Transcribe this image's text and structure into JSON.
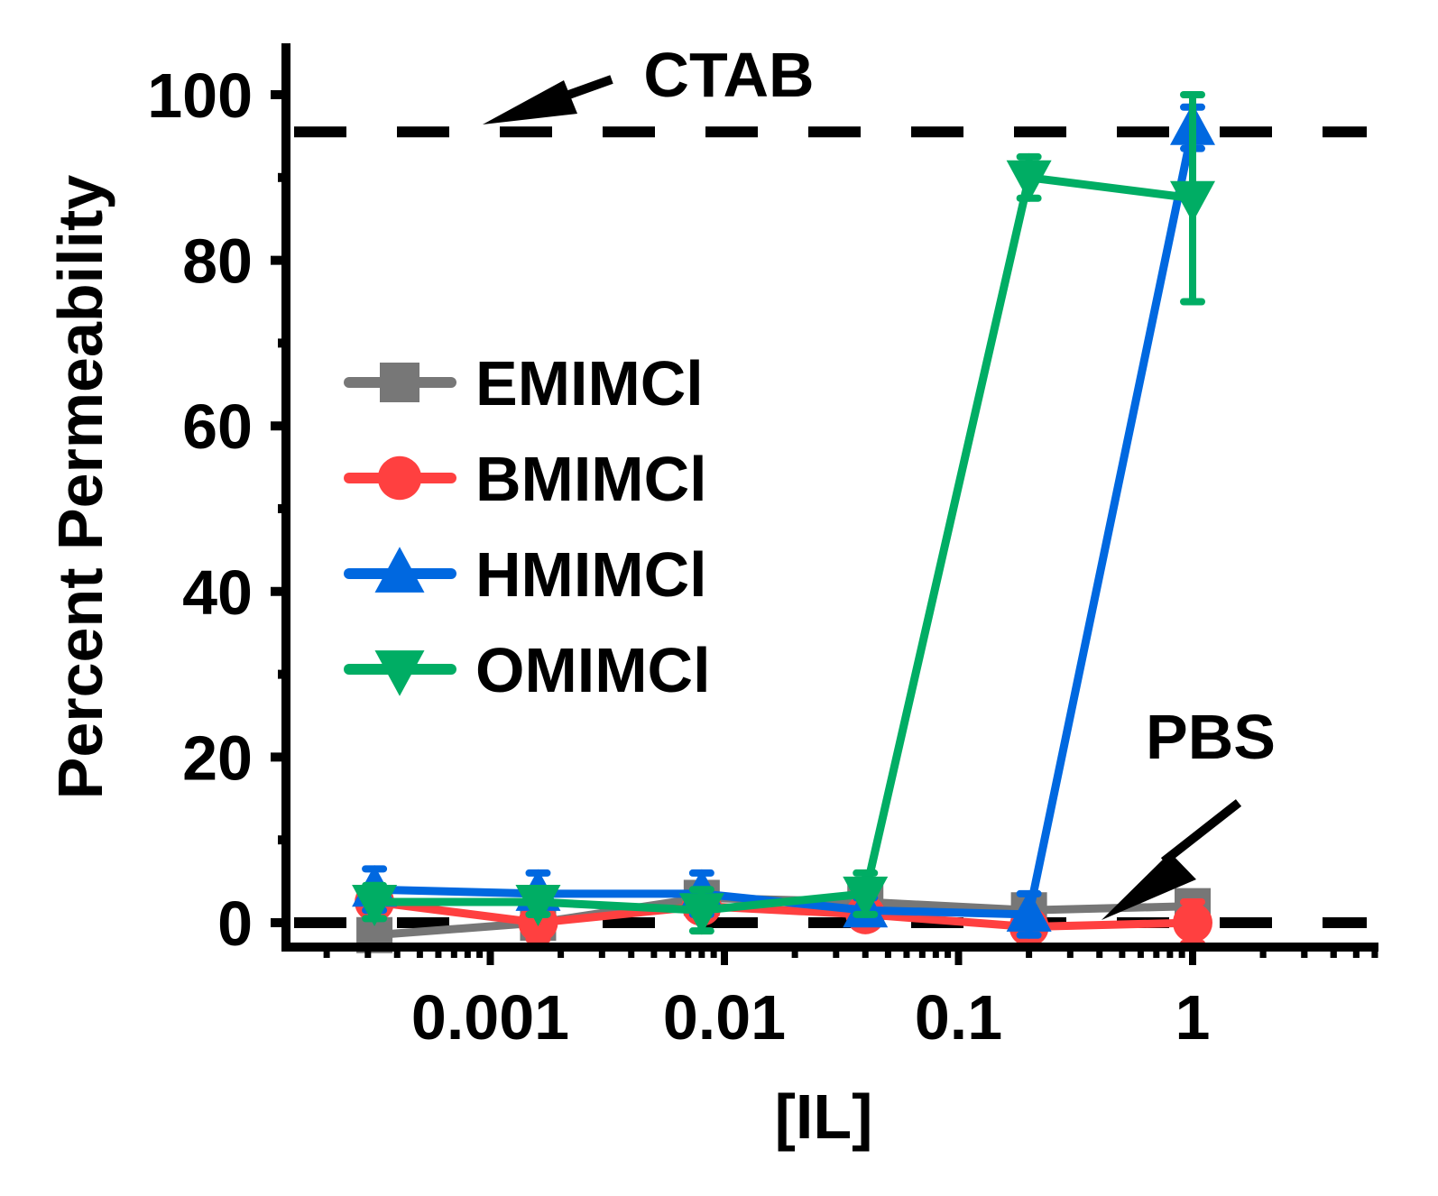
{
  "chart_data": {
    "type": "line",
    "title": "",
    "xlabel": "[IL]",
    "ylabel": "Percent Permeability",
    "xscale": "log",
    "xlim": [
      0.0001,
      6
    ],
    "ylim": [
      -3,
      109
    ],
    "x_ticks": [
      0.001,
      0.01,
      0.1,
      1
    ],
    "x_tick_labels": [
      "0.001",
      "0.01",
      "0.1",
      "1"
    ],
    "y_ticks": [
      0,
      20,
      40,
      60,
      80,
      100
    ],
    "y_tick_labels": [
      "0",
      "20",
      "40",
      "60",
      "80",
      "100"
    ],
    "grid": false,
    "legend_position": "upper-left (inside)",
    "x": [
      0.00032,
      0.0016,
      0.008,
      0.04,
      0.2,
      1
    ],
    "series": [
      {
        "name": "EMIMCl",
        "label": "EMIMCl",
        "color": "#777777",
        "marker": "square",
        "values": [
          -1.5,
          0.0,
          3.0,
          2.5,
          1.5,
          2.0
        ],
        "errors": [
          1.5,
          1.5,
          1.5,
          1.0,
          1.0,
          1.5
        ]
      },
      {
        "name": "BMIMCl",
        "label": "BMIMCl",
        "color": "#ff4040",
        "marker": "circle",
        "values": [
          2.5,
          0.0,
          2.0,
          1.0,
          -0.5,
          0.0
        ],
        "errors": [
          1.5,
          2.0,
          1.5,
          1.5,
          1.0,
          2.5
        ]
      },
      {
        "name": "HMIMCl",
        "label": "HMIMCl",
        "color": "#0068e0",
        "marker": "triangle-up",
        "values": [
          4.0,
          3.5,
          3.5,
          1.5,
          1.0,
          96.0
        ],
        "errors": [
          2.5,
          2.5,
          2.5,
          1.5,
          2.5,
          2.5
        ]
      },
      {
        "name": "OMIMCl",
        "label": "OMIMCl",
        "color": "#00ad64",
        "marker": "triangle-down",
        "values": [
          2.5,
          2.5,
          1.5,
          3.5,
          90.0,
          87.5
        ],
        "errors": [
          2.0,
          1.5,
          2.5,
          2.5,
          2.5,
          12.5
        ]
      }
    ],
    "reference_lines": [
      {
        "label": "CTAB",
        "y": 95.5,
        "style": "dashed",
        "color": "#000000"
      },
      {
        "label": "PBS",
        "y": 0,
        "style": "dashed",
        "color": "#000000"
      }
    ],
    "annotations": [
      {
        "text": "CTAB",
        "arrow_to": "CTAB reference line"
      },
      {
        "text": "PBS",
        "arrow_to": "PBS reference line"
      }
    ]
  },
  "labels": {
    "ylabel": "Percent Permeability",
    "xlabel": "[IL]",
    "ctab": "CTAB",
    "pbs": "PBS"
  }
}
